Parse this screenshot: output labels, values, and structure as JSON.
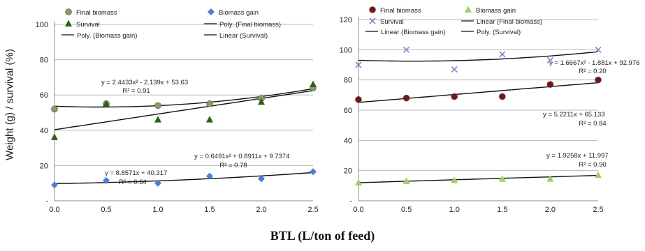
{
  "xlabel": "BTL (L/ton of feed)",
  "ylabel": "Weight (g) / survival (%)",
  "colors": {
    "final_biomass_left": "#8a9a6a",
    "biomass_gain": "#4a7fd0",
    "survival_left": "#2e5e1a",
    "final_biomass_right": "#7a1414",
    "survival_right": "#9080c8",
    "biomass_gain_right": "#9ccf6a",
    "trend": "#111111",
    "grid": "#b8b8b8"
  },
  "chart_data": [
    {
      "type": "scatter",
      "x": [
        0.0,
        0.5,
        1.0,
        1.5,
        2.0,
        2.5
      ],
      "xticks": [
        "0.0",
        "0.5",
        "1.0",
        "1.5",
        "2.0",
        "2.5"
      ],
      "yticks": [
        "-",
        "20",
        "40",
        "60",
        "80",
        "100"
      ],
      "ylim": [
        0,
        100
      ],
      "xlim": [
        0,
        2.5
      ],
      "grid": "horizontal",
      "series": [
        {
          "name": "Final biomass",
          "marker": "circle",
          "values": [
            52,
            55,
            54,
            55,
            58,
            64
          ]
        },
        {
          "name": "Biomass gain",
          "marker": "diamond",
          "values": [
            9,
            11.5,
            10,
            14,
            12.5,
            16.5
          ]
        },
        {
          "name": "Survival",
          "marker": "triangle",
          "values": [
            36,
            55,
            46,
            46,
            56,
            66
          ]
        }
      ],
      "legend": [
        "Final biomass",
        "Biomass gain",
        "Survival",
        "Poly. (Final biomass)",
        "Poly. (Biomass gain)",
        "Linear (Survival)"
      ],
      "trendlines": [
        {
          "series": "Final biomass",
          "kind": "poly2",
          "coef": [
            2.4433,
            -2.139,
            53.63
          ],
          "equation": "y = 2.4433x² - 2.139x + 53.63",
          "r2": "R² = 0.91"
        },
        {
          "series": "Survival",
          "kind": "linear",
          "coef": [
            8.8571,
            40.317
          ],
          "equation": "y = 8.8571x + 40.317",
          "r2": "R² = 0.64"
        },
        {
          "series": "Biomass gain",
          "kind": "poly2",
          "coef": [
            0.6491,
            0.8911,
            9.7374
          ],
          "equation": "y = 0.6491x² + 0.8911x + 9.7374",
          "r2": "R² = 0.78"
        }
      ]
    },
    {
      "type": "scatter",
      "x": [
        0.0,
        0.5,
        1.0,
        1.5,
        2.0,
        2.5
      ],
      "xticks": [
        "0.0",
        "0.5",
        "1.0",
        "1.5",
        "2.0",
        "2.5"
      ],
      "yticks": [
        "-",
        "20",
        "40",
        "60",
        "80",
        "100",
        "120"
      ],
      "ylim": [
        0,
        120
      ],
      "xlim": [
        0,
        2.5
      ],
      "grid": "horizontal",
      "series": [
        {
          "name": "Final biomass",
          "marker": "circle",
          "values": [
            67,
            68,
            69,
            69,
            77,
            80
          ]
        },
        {
          "name": "Biomass gain",
          "marker": "triangle",
          "values": [
            12,
            13,
            13.5,
            14.5,
            14.5,
            17
          ]
        },
        {
          "name": "Survival",
          "marker": "x",
          "values": [
            90,
            100,
            87,
            97,
            93,
            100
          ]
        }
      ],
      "legend": [
        "Final biomass",
        "Biomass gain",
        "Survival",
        "Linear (Final biomass)",
        "Linear (Biomass gain)",
        "Poly. (Survival)"
      ],
      "trendlines": [
        {
          "series": "Survival",
          "kind": "poly2",
          "coef": [
            1.6667,
            -1.881,
            92.976
          ],
          "equation": "y = 1.6667x² - 1.881x + 92.976",
          "r2": "R² = 0.20"
        },
        {
          "series": "Final biomass",
          "kind": "linear",
          "coef": [
            5.2211,
            65.133
          ],
          "equation": "y = 5.2211x + 65.133",
          "r2": "R² = 0.84"
        },
        {
          "series": "Biomass gain",
          "kind": "linear",
          "coef": [
            1.9258,
            11.997
          ],
          "equation": "y = 1.9258x + 11.997",
          "r2": "R² = 0.90"
        }
      ]
    }
  ]
}
